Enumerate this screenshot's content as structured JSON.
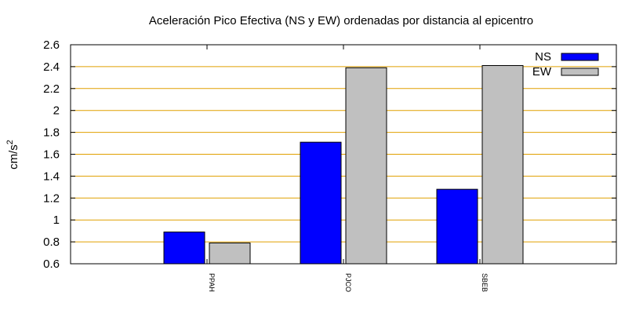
{
  "chart_data": {
    "type": "bar",
    "title": "Aceleración Pico Efectiva (NS y EW) ordenadas por distancia al epicentro",
    "xlabel": "",
    "ylabel": "cm/s",
    "ylabel_superscript": "2",
    "categories": [
      "PPAH",
      "PJCO",
      "SBEB"
    ],
    "series": [
      {
        "name": "NS",
        "color": "#0000ff",
        "values": [
          0.89,
          1.71,
          1.28
        ]
      },
      {
        "name": "EW",
        "color": "#c0c0c0",
        "values": [
          0.79,
          2.39,
          2.41
        ]
      }
    ],
    "ylim": [
      0.6,
      2.6
    ],
    "yticks": [
      "0.6",
      "0.8",
      "1",
      "1.2",
      "1.4",
      "1.6",
      "1.8",
      "2",
      "2.2",
      "2.4",
      "2.6"
    ],
    "grid": true,
    "grid_color": "#e0a000",
    "legend_position": "top-right"
  }
}
